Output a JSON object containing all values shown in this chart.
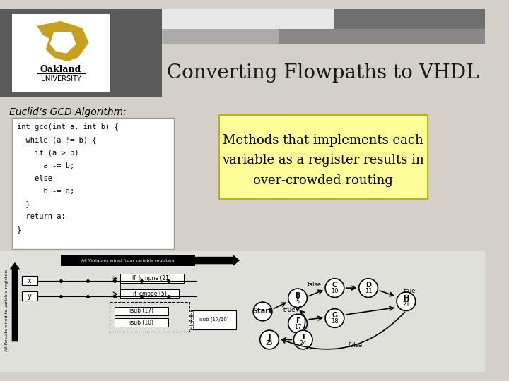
{
  "title": "Converting Flowpaths to VHDL",
  "subtitle": "Euclid’s GCD Algorithm:",
  "code_lines": [
    "int gcd(int a, int b) {",
    "  while (a != b) {",
    "    if (a > b)",
    "      a -= b;",
    "    else",
    "      b -= a;",
    "  }",
    "  return a;",
    "}"
  ],
  "highlight_text_lines": [
    "Methods that implements each",
    "variable as a register results in",
    "over-crowded routing"
  ],
  "bg_color": "#d4d0c8",
  "header_dark": "#5a5a5a",
  "header_light": "#e8e8e8",
  "header_mid": "#aaaaaa",
  "header_mid2": "#888888",
  "title_color": "#1a1a1a",
  "highlight_bg": "#ffff99",
  "highlight_border": "#b8b800",
  "logo_gold": "#c8a020",
  "bottom_bg": "#e0e0da",
  "node_positions": [
    [
      390,
      450,
      "Start",
      ""
    ],
    [
      442,
      430,
      "B",
      "5"
    ],
    [
      497,
      415,
      "C",
      "10"
    ],
    [
      547,
      415,
      "D",
      "11"
    ],
    [
      442,
      468,
      "F",
      "17"
    ],
    [
      497,
      460,
      "G",
      "18"
    ],
    [
      603,
      435,
      "H",
      "21"
    ],
    [
      400,
      492,
      "J",
      "25"
    ],
    [
      450,
      492,
      "I",
      "24"
    ]
  ]
}
